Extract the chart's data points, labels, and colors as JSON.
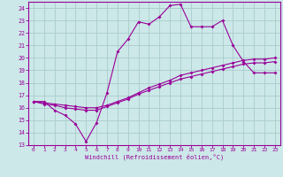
{
  "xlabel": "Windchill (Refroidissement éolien,°C)",
  "bg_color": "#cce8e8",
  "grid_color": "#aacccc",
  "line_color": "#990099",
  "xlim": [
    -0.5,
    23.5
  ],
  "ylim": [
    13,
    24.5
  ],
  "xticks": [
    0,
    1,
    2,
    3,
    4,
    5,
    6,
    7,
    8,
    9,
    10,
    11,
    12,
    13,
    14,
    15,
    16,
    17,
    18,
    19,
    20,
    21,
    22,
    23
  ],
  "yticks": [
    13,
    14,
    15,
    16,
    17,
    18,
    19,
    20,
    21,
    22,
    23,
    24
  ],
  "line1_x": [
    0,
    1,
    2,
    3,
    4,
    5,
    6,
    7,
    8,
    9,
    10,
    11,
    12,
    13,
    14,
    15,
    16,
    17,
    18,
    19,
    20,
    21,
    22,
    23
  ],
  "line1_y": [
    16.5,
    16.5,
    15.8,
    15.4,
    14.7,
    13.3,
    14.8,
    17.2,
    20.5,
    21.5,
    22.9,
    22.7,
    23.3,
    24.2,
    24.3,
    22.5,
    22.5,
    22.5,
    23.0,
    21.0,
    19.7,
    18.8,
    18.8,
    18.8
  ],
  "line2_x": [
    0,
    1,
    2,
    3,
    4,
    5,
    6,
    7,
    8,
    9,
    10,
    11,
    12,
    13,
    14,
    15,
    16,
    17,
    18,
    19,
    20,
    21,
    22,
    23
  ],
  "line2_y": [
    16.5,
    16.3,
    16.2,
    16.0,
    15.9,
    15.8,
    15.8,
    16.1,
    16.4,
    16.7,
    17.1,
    17.4,
    17.7,
    18.0,
    18.3,
    18.5,
    18.7,
    18.9,
    19.1,
    19.3,
    19.5,
    19.6,
    19.6,
    19.7
  ],
  "line3_x": [
    0,
    1,
    2,
    3,
    4,
    5,
    6,
    7,
    8,
    9,
    10,
    11,
    12,
    13,
    14,
    15,
    16,
    17,
    18,
    19,
    20,
    21,
    22,
    23
  ],
  "line3_y": [
    16.5,
    16.4,
    16.3,
    16.2,
    16.1,
    16.0,
    16.0,
    16.2,
    16.5,
    16.8,
    17.2,
    17.6,
    17.9,
    18.2,
    18.6,
    18.8,
    19.0,
    19.2,
    19.4,
    19.6,
    19.8,
    19.9,
    19.9,
    20.0
  ]
}
